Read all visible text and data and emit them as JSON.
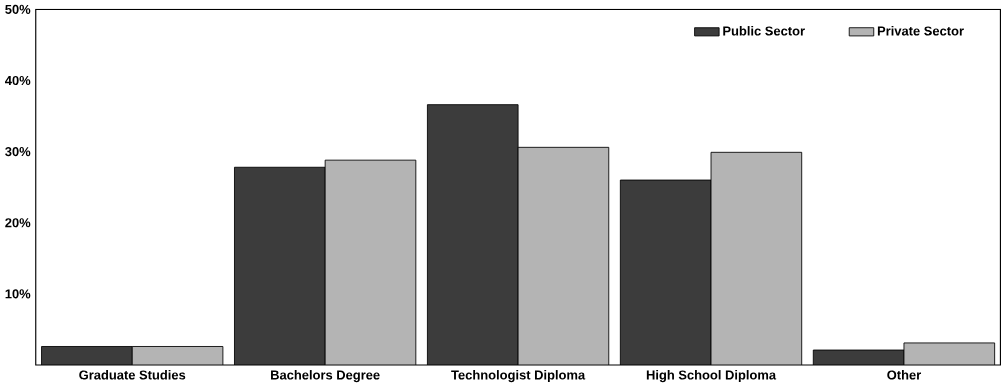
{
  "chart_data": {
    "type": "bar",
    "categories": [
      "Graduate Studies",
      "Bachelors Degree",
      "Technologist Diploma",
      "High School Diploma",
      "Other"
    ],
    "series": [
      {
        "name": "Public Sector",
        "color": "#3c3c3c",
        "values": [
          2.6,
          27.8,
          36.6,
          26.0,
          2.1
        ]
      },
      {
        "name": "Private Sector",
        "color": "#b4b4b4",
        "values": [
          2.6,
          28.8,
          30.6,
          29.9,
          3.1
        ]
      }
    ],
    "ylim": [
      0,
      50
    ],
    "yticks": [
      {
        "value": 10,
        "label": "10%"
      },
      {
        "value": 20,
        "label": "20%"
      },
      {
        "value": 30,
        "label": "30%"
      },
      {
        "value": 40,
        "label": "40%"
      },
      {
        "value": 50,
        "label": "50%"
      }
    ],
    "grid": false,
    "legend": "top right"
  }
}
